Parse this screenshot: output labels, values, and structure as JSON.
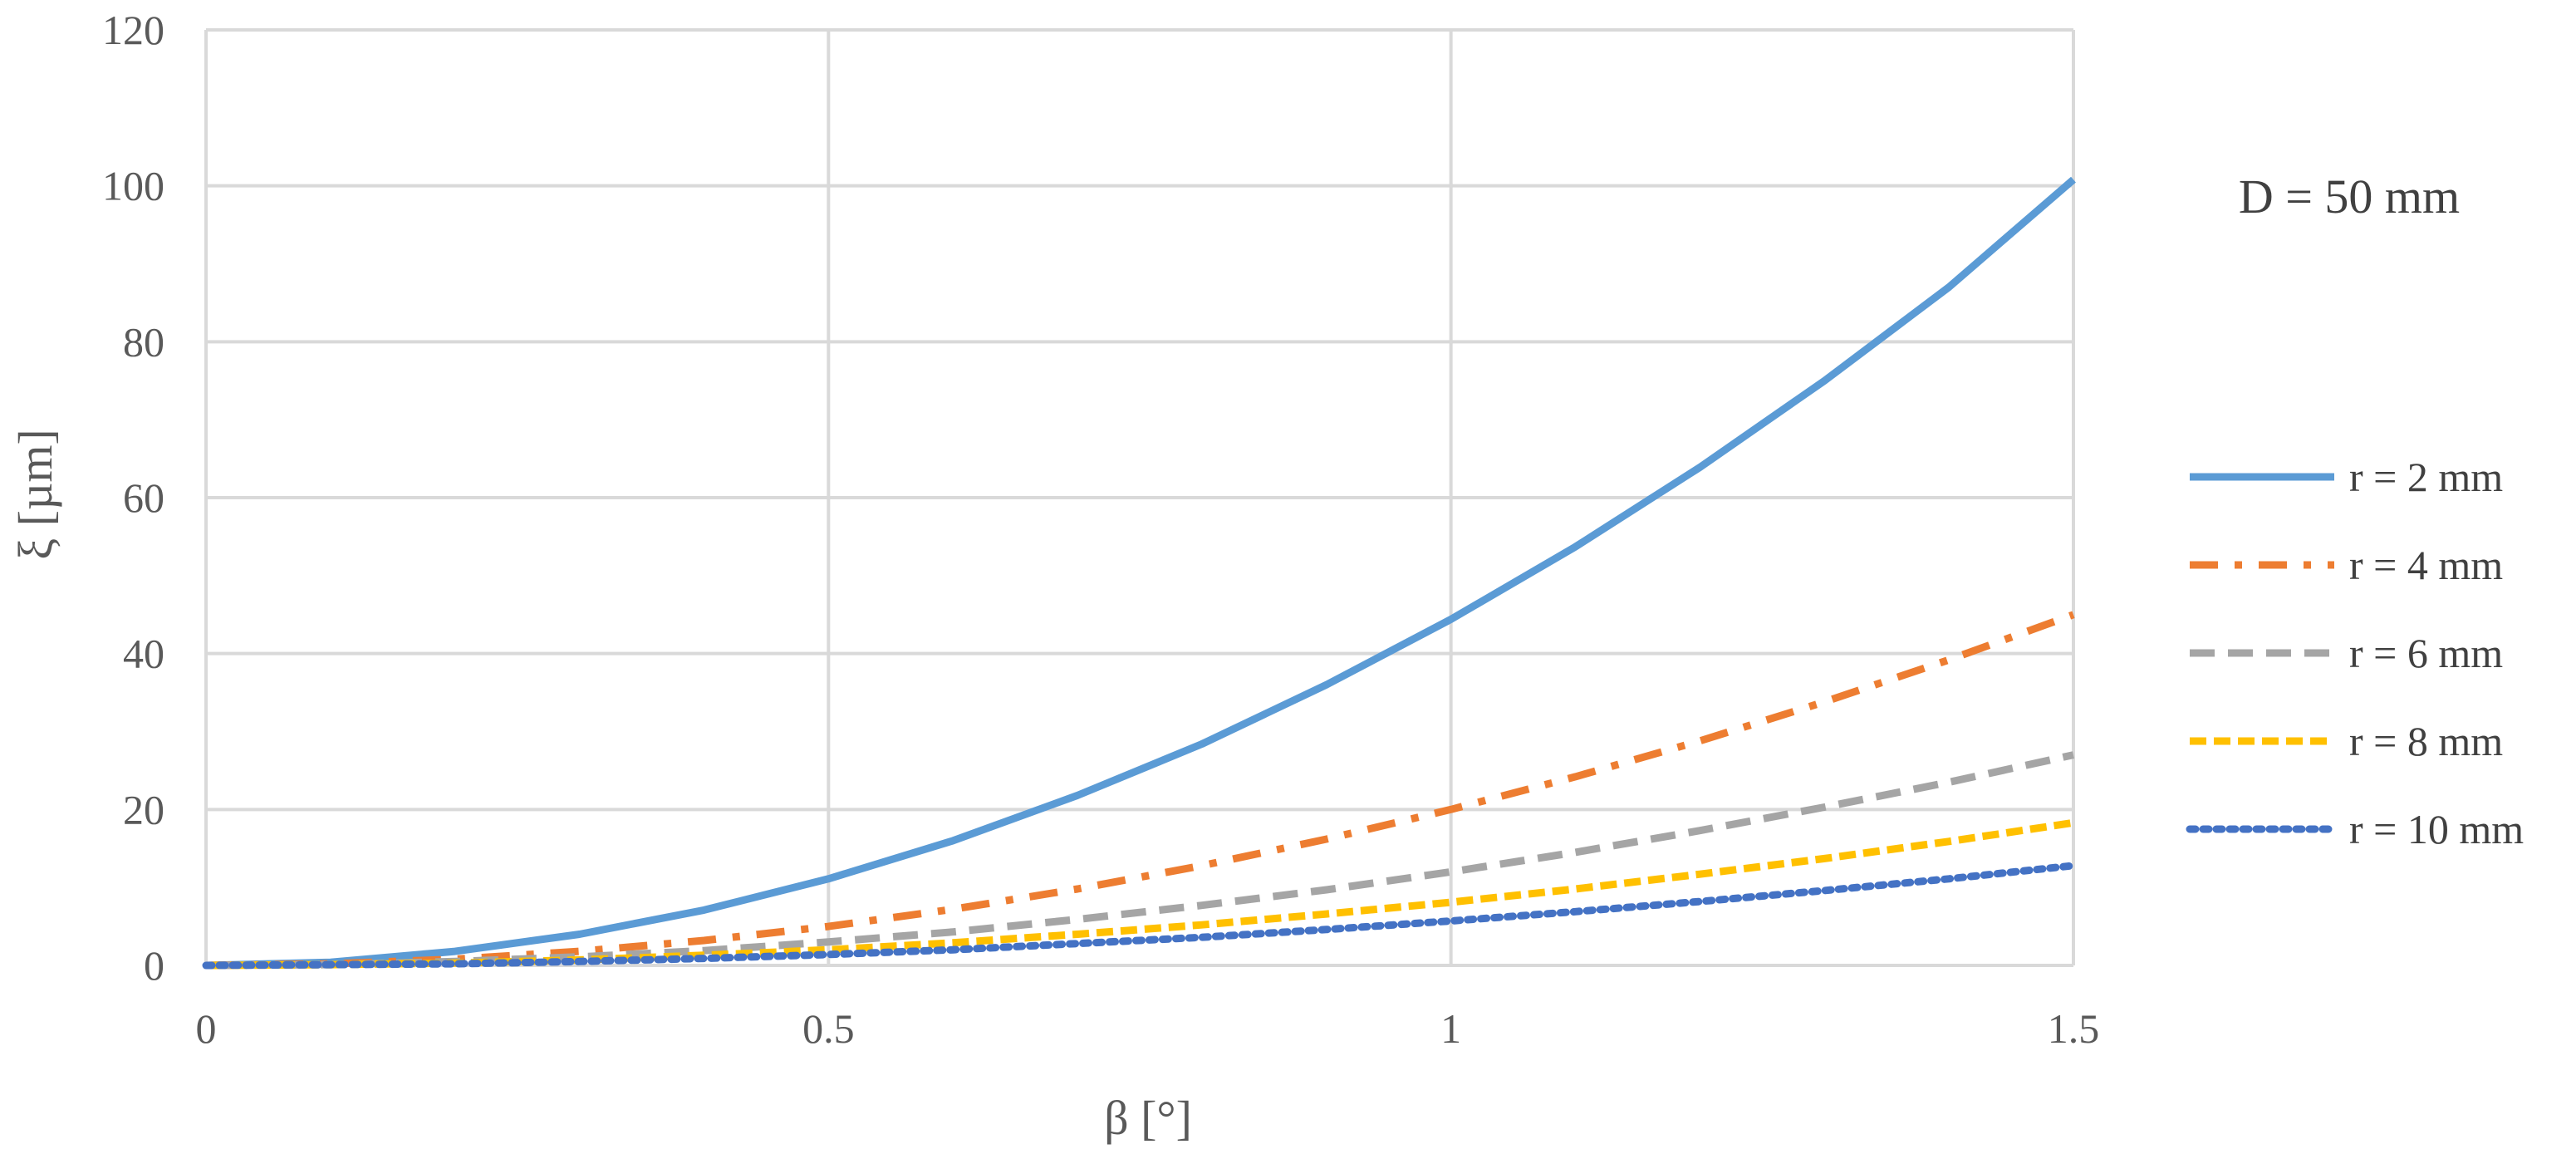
{
  "chart_data": {
    "type": "line",
    "title": "",
    "xlabel": "β [°]",
    "ylabel": "ξ [µm]",
    "annotation": "D = 50 mm",
    "xlim": [
      0,
      1.5
    ],
    "ylim": [
      0,
      120
    ],
    "x_ticks": [
      "0",
      "0.5",
      "1",
      "1.5"
    ],
    "y_ticks": [
      "0",
      "20",
      "40",
      "60",
      "80",
      "100",
      "120"
    ],
    "grid": true,
    "legend_position": "right",
    "x": [
      0,
      0.1,
      0.2,
      0.3,
      0.4,
      0.5,
      0.6,
      0.7,
      0.8,
      0.9,
      1.0,
      1.1,
      1.2,
      1.3,
      1.4,
      1.5
    ],
    "series": [
      {
        "name": "r = 2 mm",
        "color": "#5B9BD5",
        "style": "solid",
        "values": [
          0,
          0.4,
          1.8,
          4.0,
          7.1,
          11.1,
          16.0,
          21.8,
          28.4,
          36.0,
          44.4,
          53.7,
          63.9,
          75.0,
          87.0,
          100.8
        ]
      },
      {
        "name": "r = 4 mm",
        "color": "#ED7D31",
        "style": "dashdot",
        "values": [
          0,
          0.2,
          0.8,
          1.8,
          3.2,
          5.0,
          7.2,
          9.8,
          12.8,
          16.2,
          20.0,
          24.2,
          28.8,
          33.8,
          39.2,
          45.0
        ]
      },
      {
        "name": "r = 6 mm",
        "color": "#A5A5A5",
        "style": "dashed",
        "values": [
          0,
          0.1,
          0.5,
          1.1,
          1.9,
          3.0,
          4.3,
          5.9,
          7.7,
          9.7,
          12.0,
          14.5,
          17.3,
          20.3,
          23.5,
          27.0
        ]
      },
      {
        "name": "r = 8 mm",
        "color": "#FFC000",
        "style": "shortdash",
        "values": [
          0,
          0.1,
          0.3,
          0.7,
          1.3,
          2.0,
          2.9,
          4.0,
          5.2,
          6.6,
          8.1,
          9.8,
          11.7,
          13.7,
          15.9,
          18.3
        ]
      },
      {
        "name": "r = 10 mm",
        "color": "#4472C4",
        "style": "dotted",
        "values": [
          0,
          0.1,
          0.2,
          0.5,
          0.9,
          1.4,
          2.0,
          2.8,
          3.6,
          4.6,
          5.7,
          6.9,
          8.2,
          9.6,
          11.1,
          12.8
        ]
      }
    ]
  }
}
